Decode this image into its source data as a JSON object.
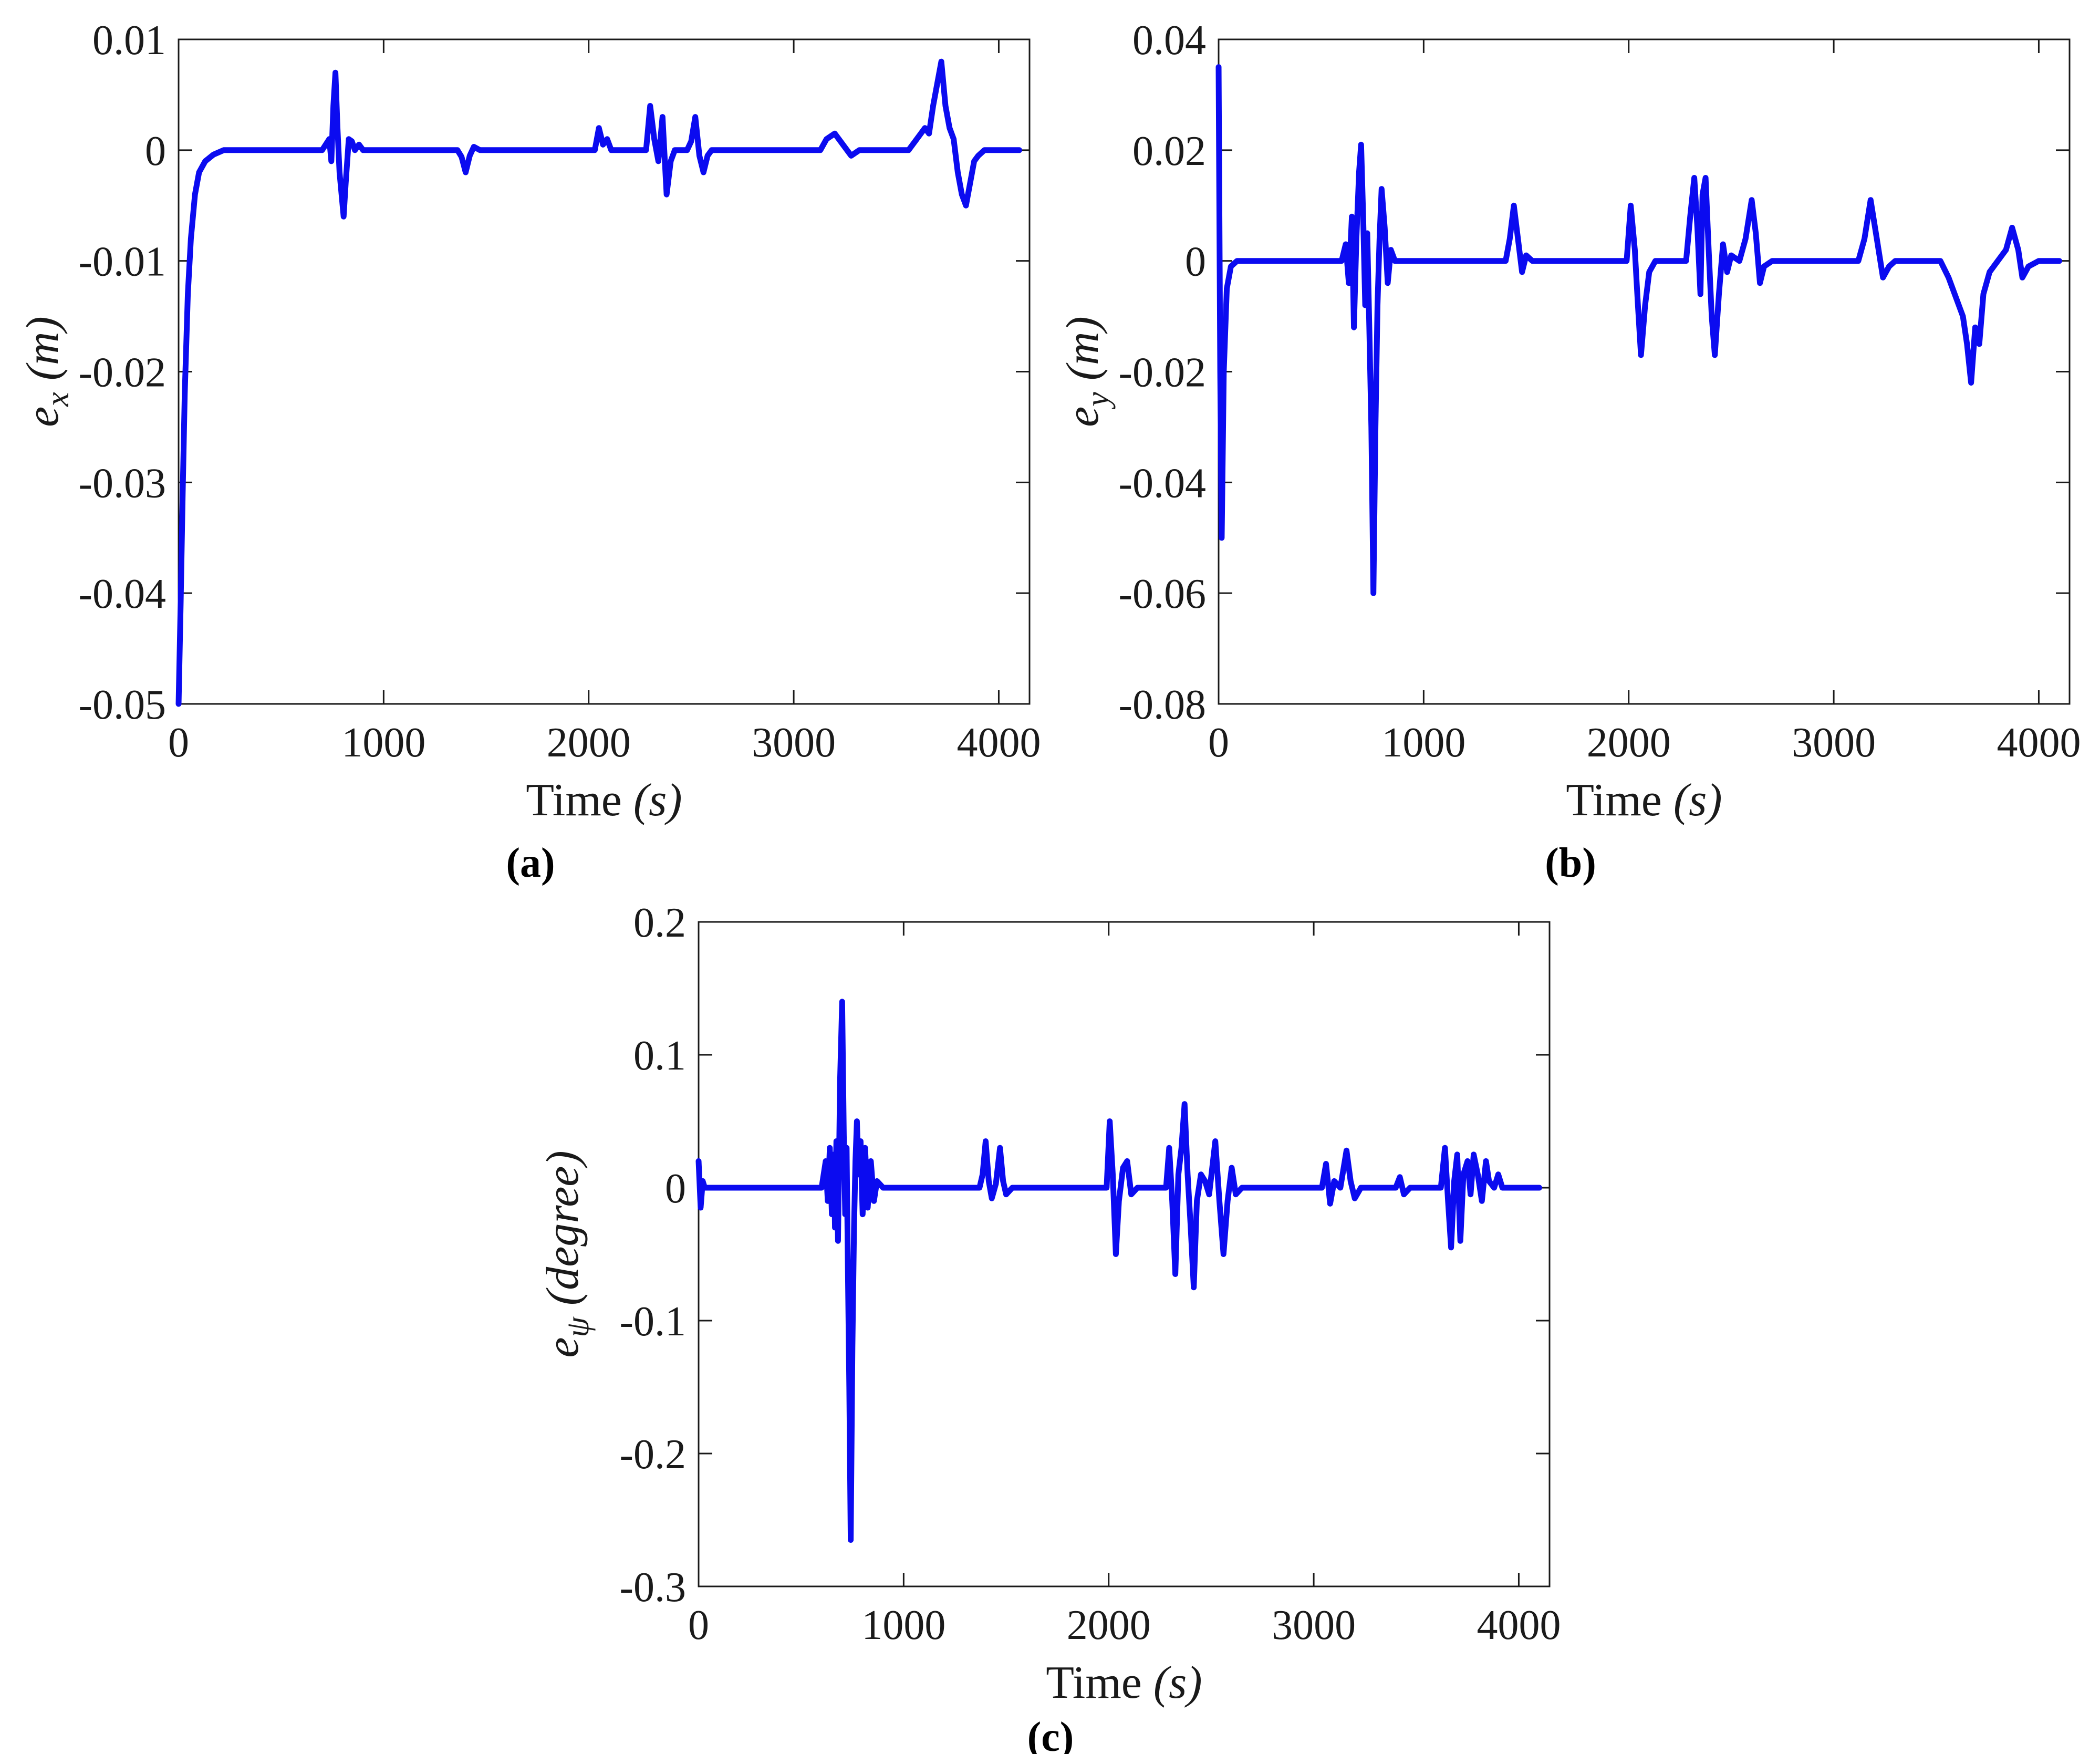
{
  "style": {
    "background": "#ffffff",
    "line_color": "#0b0bf0",
    "axis_color": "#1a1a1a",
    "line_width": 11
  },
  "chart_data": [
    {
      "type": "line",
      "caption": "(a)",
      "title": "",
      "xlabel": {
        "text": "Time",
        "unit": "(s)"
      },
      "ylabel": {
        "base": "e",
        "sub": "x",
        "unit": "(m)"
      },
      "xlim": [
        0,
        4150
      ],
      "ylim": [
        -0.05,
        0.01
      ],
      "xticks": [
        0,
        1000,
        2000,
        3000,
        4000
      ],
      "xtick_labels": [
        "0",
        "1000",
        "2000",
        "3000",
        "4000"
      ],
      "yticks": [
        -0.05,
        -0.04,
        -0.03,
        -0.02,
        -0.01,
        0,
        0.01
      ],
      "ytick_labels": [
        "-0.05",
        "-0.04",
        "-0.03",
        "-0.02",
        "-0.01",
        "0",
        "0.01"
      ],
      "legend": null,
      "grid": false,
      "points": [
        [
          0,
          -0.05
        ],
        [
          10,
          -0.041
        ],
        [
          20,
          -0.031
        ],
        [
          30,
          -0.022
        ],
        [
          45,
          -0.013
        ],
        [
          60,
          -0.008
        ],
        [
          80,
          -0.004
        ],
        [
          100,
          -0.002
        ],
        [
          130,
          -0.001
        ],
        [
          170,
          -0.0004
        ],
        [
          220,
          0
        ],
        [
          700,
          0
        ],
        [
          735,
          0.001
        ],
        [
          745,
          -0.001
        ],
        [
          755,
          0.004
        ],
        [
          765,
          0.007
        ],
        [
          775,
          0.002
        ],
        [
          785,
          -0.002
        ],
        [
          795,
          -0.004
        ],
        [
          805,
          -0.006
        ],
        [
          815,
          -0.003
        ],
        [
          830,
          0.001
        ],
        [
          845,
          0.0008
        ],
        [
          860,
          0
        ],
        [
          880,
          0.0005
        ],
        [
          900,
          0
        ],
        [
          1360,
          0
        ],
        [
          1380,
          -0.0006
        ],
        [
          1400,
          -0.002
        ],
        [
          1420,
          -0.0005
        ],
        [
          1440,
          0.0003
        ],
        [
          1470,
          0
        ],
        [
          2030,
          0
        ],
        [
          2050,
          0.002
        ],
        [
          2070,
          0.0005
        ],
        [
          2090,
          0.001
        ],
        [
          2110,
          0
        ],
        [
          2150,
          0
        ],
        [
          2280,
          0
        ],
        [
          2300,
          0.004
        ],
        [
          2320,
          0.001
        ],
        [
          2340,
          -0.001
        ],
        [
          2360,
          0.003
        ],
        [
          2380,
          -0.004
        ],
        [
          2400,
          -0.001
        ],
        [
          2420,
          0
        ],
        [
          2480,
          0
        ],
        [
          2500,
          0.0008
        ],
        [
          2520,
          0.003
        ],
        [
          2540,
          -0.0005
        ],
        [
          2560,
          -0.002
        ],
        [
          2580,
          -0.0005
        ],
        [
          2600,
          0
        ],
        [
          3130,
          0
        ],
        [
          3160,
          0.001
        ],
        [
          3200,
          0.0015
        ],
        [
          3240,
          0.0005
        ],
        [
          3280,
          -0.0005
        ],
        [
          3320,
          0
        ],
        [
          3560,
          0
        ],
        [
          3600,
          0.001
        ],
        [
          3640,
          0.002
        ],
        [
          3660,
          0.0015
        ],
        [
          3680,
          0.004
        ],
        [
          3700,
          0.006
        ],
        [
          3720,
          0.008
        ],
        [
          3740,
          0.004
        ],
        [
          3760,
          0.002
        ],
        [
          3780,
          0.001
        ],
        [
          3800,
          -0.002
        ],
        [
          3820,
          -0.004
        ],
        [
          3840,
          -0.005
        ],
        [
          3860,
          -0.003
        ],
        [
          3880,
          -0.001
        ],
        [
          3900,
          -0.0005
        ],
        [
          3930,
          0
        ],
        [
          4100,
          0
        ]
      ]
    },
    {
      "type": "line",
      "caption": "(b)",
      "title": "",
      "xlabel": {
        "text": "Time",
        "unit": "(s)"
      },
      "ylabel": {
        "base": "e",
        "sub": "y",
        "unit": "(m)"
      },
      "xlim": [
        0,
        4150
      ],
      "ylim": [
        -0.08,
        0.04
      ],
      "xticks": [
        0,
        1000,
        2000,
        3000,
        4000
      ],
      "xtick_labels": [
        "0",
        "1000",
        "2000",
        "3000",
        "4000"
      ],
      "yticks": [
        -0.08,
        -0.06,
        -0.04,
        -0.02,
        0,
        0.02,
        0.04
      ],
      "ytick_labels": [
        "-0.08",
        "-0.06",
        "-0.04",
        "-0.02",
        "0",
        "0.02",
        "0.04"
      ],
      "legend": null,
      "grid": false,
      "points": [
        [
          0,
          0.035
        ],
        [
          8,
          -0.02
        ],
        [
          15,
          -0.05
        ],
        [
          25,
          -0.02
        ],
        [
          40,
          -0.005
        ],
        [
          60,
          -0.001
        ],
        [
          90,
          0
        ],
        [
          600,
          0
        ],
        [
          620,
          0.003
        ],
        [
          635,
          -0.004
        ],
        [
          650,
          0.008
        ],
        [
          660,
          -0.012
        ],
        [
          672,
          0.004
        ],
        [
          685,
          0.016
        ],
        [
          695,
          0.021
        ],
        [
          705,
          0.008
        ],
        [
          715,
          -0.008
        ],
        [
          725,
          0.005
        ],
        [
          735,
          -0.012
        ],
        [
          745,
          -0.03
        ],
        [
          755,
          -0.06
        ],
        [
          765,
          -0.03
        ],
        [
          775,
          -0.008
        ],
        [
          785,
          0.004
        ],
        [
          795,
          0.013
        ],
        [
          810,
          0.006
        ],
        [
          825,
          -0.004
        ],
        [
          840,
          0.002
        ],
        [
          860,
          0
        ],
        [
          900,
          0
        ],
        [
          1400,
          0
        ],
        [
          1420,
          0.004
        ],
        [
          1440,
          0.01
        ],
        [
          1460,
          0.004
        ],
        [
          1480,
          -0.002
        ],
        [
          1500,
          0.001
        ],
        [
          1530,
          0
        ],
        [
          1990,
          0
        ],
        [
          2010,
          0.01
        ],
        [
          2030,
          0.002
        ],
        [
          2045,
          -0.008
        ],
        [
          2060,
          -0.017
        ],
        [
          2080,
          -0.008
        ],
        [
          2100,
          -0.002
        ],
        [
          2130,
          0
        ],
        [
          2280,
          0
        ],
        [
          2300,
          0.008
        ],
        [
          2320,
          0.015
        ],
        [
          2335,
          0.006
        ],
        [
          2350,
          -0.006
        ],
        [
          2360,
          0.012
        ],
        [
          2375,
          0.015
        ],
        [
          2390,
          0.002
        ],
        [
          2405,
          -0.01
        ],
        [
          2420,
          -0.017
        ],
        [
          2440,
          -0.006
        ],
        [
          2460,
          0.003
        ],
        [
          2480,
          -0.002
        ],
        [
          2500,
          0.001
        ],
        [
          2540,
          0
        ],
        [
          2570,
          0.004
        ],
        [
          2600,
          0.011
        ],
        [
          2620,
          0.005
        ],
        [
          2640,
          -0.004
        ],
        [
          2660,
          -0.001
        ],
        [
          2700,
          0
        ],
        [
          3120,
          0
        ],
        [
          3150,
          0.004
        ],
        [
          3180,
          0.011
        ],
        [
          3210,
          0.004
        ],
        [
          3240,
          -0.003
        ],
        [
          3270,
          -0.001
        ],
        [
          3300,
          0
        ],
        [
          3520,
          0
        ],
        [
          3560,
          -0.003
        ],
        [
          3600,
          -0.007
        ],
        [
          3630,
          -0.01
        ],
        [
          3650,
          -0.015
        ],
        [
          3670,
          -0.022
        ],
        [
          3690,
          -0.012
        ],
        [
          3710,
          -0.015
        ],
        [
          3730,
          -0.006
        ],
        [
          3760,
          -0.002
        ],
        [
          3800,
          0
        ],
        [
          3840,
          0.002
        ],
        [
          3870,
          0.006
        ],
        [
          3900,
          0.002
        ],
        [
          3920,
          -0.003
        ],
        [
          3950,
          -0.001
        ],
        [
          4000,
          0
        ],
        [
          4100,
          0
        ]
      ]
    },
    {
      "type": "line",
      "caption": "(c)",
      "title": "",
      "xlabel": {
        "text": "Time",
        "unit": "(s)"
      },
      "ylabel": {
        "base": "e",
        "sub": "ψ",
        "unit": "(degree)"
      },
      "xlim": [
        0,
        4150
      ],
      "ylim": [
        -0.3,
        0.2
      ],
      "xticks": [
        0,
        1000,
        2000,
        3000,
        4000
      ],
      "xtick_labels": [
        "0",
        "1000",
        "2000",
        "3000",
        "4000"
      ],
      "yticks": [
        -0.3,
        -0.2,
        -0.1,
        0,
        0.1,
        0.2
      ],
      "ytick_labels": [
        "-0.3",
        "-0.2",
        "-0.1",
        "0",
        "0.1",
        "0.2"
      ],
      "legend": null,
      "grid": false,
      "points": [
        [
          0,
          0.02
        ],
        [
          10,
          -0.015
        ],
        [
          20,
          0.005
        ],
        [
          30,
          0
        ],
        [
          600,
          0
        ],
        [
          620,
          0.02
        ],
        [
          630,
          -0.01
        ],
        [
          640,
          0.03
        ],
        [
          650,
          -0.02
        ],
        [
          660,
          0.025
        ],
        [
          665,
          -0.03
        ],
        [
          672,
          0.035
        ],
        [
          680,
          -0.04
        ],
        [
          690,
          0.08
        ],
        [
          700,
          0.14
        ],
        [
          708,
          0.04
        ],
        [
          715,
          -0.02
        ],
        [
          722,
          0.03
        ],
        [
          728,
          -0.06
        ],
        [
          735,
          -0.15
        ],
        [
          742,
          -0.265
        ],
        [
          750,
          -0.12
        ],
        [
          758,
          -0.03
        ],
        [
          765,
          0.02
        ],
        [
          772,
          0.05
        ],
        [
          780,
          0.01
        ],
        [
          790,
          0.035
        ],
        [
          800,
          -0.02
        ],
        [
          812,
          0.03
        ],
        [
          825,
          -0.015
        ],
        [
          840,
          0.02
        ],
        [
          855,
          -0.01
        ],
        [
          870,
          0.005
        ],
        [
          900,
          0
        ],
        [
          1370,
          0
        ],
        [
          1385,
          0.01
        ],
        [
          1400,
          0.035
        ],
        [
          1415,
          0.005
        ],
        [
          1430,
          -0.008
        ],
        [
          1450,
          0.003
        ],
        [
          1470,
          0.03
        ],
        [
          1485,
          0.005
        ],
        [
          1500,
          -0.005
        ],
        [
          1530,
          0
        ],
        [
          1990,
          0
        ],
        [
          2005,
          0.05
        ],
        [
          2020,
          0.01
        ],
        [
          2035,
          -0.05
        ],
        [
          2050,
          -0.01
        ],
        [
          2070,
          0.015
        ],
        [
          2090,
          0.02
        ],
        [
          2110,
          -0.005
        ],
        [
          2140,
          0
        ],
        [
          2280,
          0
        ],
        [
          2295,
          0.03
        ],
        [
          2310,
          -0.01
        ],
        [
          2325,
          -0.065
        ],
        [
          2340,
          0.01
        ],
        [
          2355,
          0.03
        ],
        [
          2370,
          0.063
        ],
        [
          2385,
          0.01
        ],
        [
          2400,
          -0.03
        ],
        [
          2415,
          -0.075
        ],
        [
          2430,
          -0.01
        ],
        [
          2450,
          0.01
        ],
        [
          2470,
          0.005
        ],
        [
          2490,
          -0.005
        ],
        [
          2520,
          0.035
        ],
        [
          2540,
          -0.01
        ],
        [
          2560,
          -0.05
        ],
        [
          2580,
          -0.01
        ],
        [
          2600,
          0.015
        ],
        [
          2620,
          -0.005
        ],
        [
          2650,
          0
        ],
        [
          3040,
          0
        ],
        [
          3060,
          0.018
        ],
        [
          3080,
          -0.012
        ],
        [
          3100,
          0.005
        ],
        [
          3130,
          0
        ],
        [
          3160,
          0.028
        ],
        [
          3180,
          0.005
        ],
        [
          3200,
          -0.008
        ],
        [
          3230,
          0
        ],
        [
          3400,
          0
        ],
        [
          3420,
          0.008
        ],
        [
          3440,
          -0.005
        ],
        [
          3470,
          0
        ],
        [
          3620,
          0
        ],
        [
          3640,
          0.03
        ],
        [
          3655,
          -0.01
        ],
        [
          3670,
          -0.045
        ],
        [
          3685,
          0.005
        ],
        [
          3700,
          0.025
        ],
        [
          3715,
          -0.04
        ],
        [
          3730,
          0.01
        ],
        [
          3750,
          0.02
        ],
        [
          3765,
          -0.005
        ],
        [
          3780,
          0.025
        ],
        [
          3800,
          0.01
        ],
        [
          3820,
          -0.01
        ],
        [
          3840,
          0.02
        ],
        [
          3855,
          0.005
        ],
        [
          3880,
          0
        ],
        [
          3900,
          0.01
        ],
        [
          3920,
          0
        ],
        [
          4100,
          0
        ]
      ]
    }
  ]
}
